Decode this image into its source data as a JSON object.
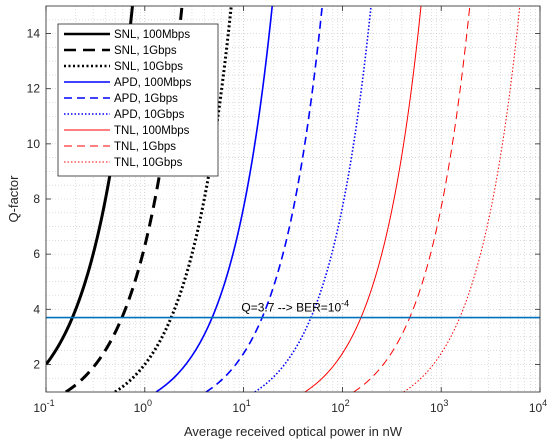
{
  "chart_data": {
    "type": "line",
    "title": "",
    "xlabel": "Average received optical power in nW",
    "ylabel": "Q-factor",
    "xscale": "log",
    "xlim": [
      0.1,
      10000
    ],
    "ylim": [
      1,
      15
    ],
    "x_ticks": [
      0.1,
      1,
      10,
      100,
      1000,
      10000
    ],
    "x_tick_labels": [
      {
        "base": "10",
        "exp": "-1"
      },
      {
        "base": "10",
        "exp": "0"
      },
      {
        "base": "10",
        "exp": "1"
      },
      {
        "base": "10",
        "exp": "2"
      },
      {
        "base": "10",
        "exp": "3"
      },
      {
        "base": "10",
        "exp": "4"
      }
    ],
    "y_ticks": [
      2,
      4,
      6,
      8,
      10,
      12,
      14
    ],
    "y_tick_labels": [
      "2",
      "4",
      "6",
      "8",
      "10",
      "12",
      "14"
    ],
    "grid": true,
    "minor_grid": true,
    "legend_position": "top-left",
    "series": [
      {
        "name": "SNL, 100Mbps",
        "color": "#000000",
        "style": "solid",
        "width": "thick",
        "k": 20.0
      },
      {
        "name": "SNL, 1Gbps",
        "color": "#000000",
        "style": "dashed",
        "width": "thick",
        "k": 6.3
      },
      {
        "name": "SNL, 10Gbps",
        "color": "#000000",
        "style": "dotted",
        "width": "thick",
        "k": 2.0
      },
      {
        "name": "APD, 100Mbps",
        "color": "#0000ff",
        "style": "solid",
        "width": "medium",
        "k": 0.77
      },
      {
        "name": "APD, 1Gbps",
        "color": "#0000ff",
        "style": "dashed",
        "width": "medium",
        "k": 0.24
      },
      {
        "name": "APD, 10Gbps",
        "color": "#0000ff",
        "style": "dotted",
        "width": "medium",
        "k": 0.077
      },
      {
        "name": "TNL, 100Mbps",
        "color": "#ff0000",
        "style": "solid",
        "width": "thin",
        "k": 0.024
      },
      {
        "name": "TNL, 1Gbps",
        "color": "#ff0000",
        "style": "dashed",
        "width": "thin",
        "k": 0.0077
      },
      {
        "name": "TNL, 10Gbps",
        "color": "#ff0000",
        "style": "dotted",
        "width": "thin",
        "k": 0.0024
      }
    ],
    "reference_lines": [
      {
        "y": 3.7,
        "color": "#0072bd",
        "label_prefix": "Q=3.7 --> BER=10",
        "label_exp": "-4"
      }
    ]
  }
}
